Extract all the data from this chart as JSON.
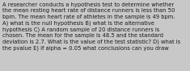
{
  "text": "A researcher conducts a hypothesis test to determine whether\nthe mean resting heart rate of distance runners is less than 50\nbpm. The mean heart rate of athletes in the sample is 49 bpm.\nA) what is the null hypothesis B) what is the alternative\nhypothesis C) A random sample of 20 distance runners is\nchosen. The mean for the sample is 48.5 and the standard\ndeviation is 2.7. What is the value of the test statistic? D) what is\nthe pvalue E) if alpha = 0.05 what conclusions can you draw",
  "background_color": "#c8c8c8",
  "text_color": "#1a1a1a",
  "font_size": 4.9,
  "fig_width": 2.35,
  "fig_height": 0.88,
  "dpi": 100
}
